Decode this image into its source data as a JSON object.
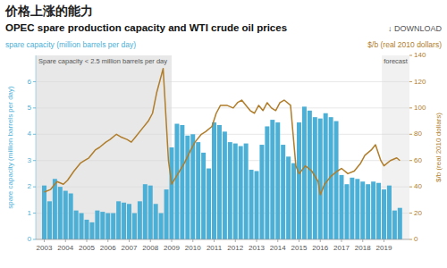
{
  "chart_data": {
    "type": "bar",
    "title": "价格上涨的能力",
    "subtitle": "OPEC spare production capacity and WTI crude oil prices",
    "ylabel": "spare capacity (million barrels per day)",
    "y2label": "$/b (real 2010 dollars)",
    "annotations": [
      "Spare capacity < 2.5 million barrels per day",
      "forecast",
      "↓ DOWNLOAD"
    ],
    "xlim": [
      2002.6,
      2020.2
    ],
    "xticks": [
      2003,
      2004,
      2005,
      2006,
      2007,
      2008,
      2009,
      2010,
      2011,
      2012,
      2013,
      2014,
      2015,
      2016,
      2017,
      2018,
      2019
    ],
    "ylim": [
      0,
      7
    ],
    "yticks": [
      0,
      1,
      2,
      3,
      4,
      5,
      6
    ],
    "y2lim": [
      0,
      140
    ],
    "y2ticks": [
      0,
      20,
      40,
      60,
      80,
      100,
      120,
      140
    ],
    "grid": true,
    "shade_color": "#e8e8e8",
    "shaded": [
      {
        "from": 2002.6,
        "to": 2009.0
      },
      {
        "from": 2018.9,
        "to": 2020.2
      }
    ],
    "series": [
      {
        "type": "bar",
        "color": "#4bafd6",
        "x": [
          2003,
          2003.25,
          2003.5,
          2003.75,
          2004,
          2004.25,
          2004.5,
          2004.75,
          2005,
          2005.25,
          2005.5,
          2005.75,
          2006,
          2006.25,
          2006.5,
          2006.75,
          2007,
          2007.25,
          2007.5,
          2007.75,
          2008,
          2008.25,
          2008.5,
          2008.75,
          2009,
          2009.25,
          2009.5,
          2009.75,
          2010,
          2010.25,
          2010.5,
          2010.75,
          2011,
          2011.25,
          2011.5,
          2011.75,
          2012,
          2012.25,
          2012.5,
          2012.75,
          2013,
          2013.25,
          2013.5,
          2013.75,
          2014,
          2014.25,
          2014.5,
          2014.75,
          2015,
          2015.25,
          2015.5,
          2015.75,
          2016,
          2016.25,
          2016.5,
          2016.75,
          2017,
          2017.25,
          2017.5,
          2017.75,
          2018,
          2018.25,
          2018.5,
          2018.75,
          2019,
          2019.25,
          2019.5,
          2019.75
        ],
        "values": [
          2.05,
          1.45,
          2.3,
          2.0,
          1.85,
          1.75,
          1.1,
          1.0,
          0.75,
          0.65,
          1.1,
          1.05,
          1.0,
          1.0,
          1.45,
          1.4,
          1.35,
          1.0,
          1.45,
          2.1,
          2.05,
          1.35,
          1.0,
          1.9,
          3.5,
          4.4,
          4.35,
          3.95,
          4.0,
          3.7,
          3.3,
          2.7,
          4.45,
          4.35,
          4.1,
          3.7,
          3.65,
          3.55,
          3.65,
          2.65,
          2.6,
          3.6,
          4.3,
          4.55,
          4.45,
          3.6,
          3.15,
          2.9,
          4.45,
          5.05,
          4.9,
          4.65,
          4.6,
          4.8,
          4.65,
          4.5,
          2.45,
          2.1,
          2.35,
          2.3,
          2.2,
          2.1,
          2.2,
          2.15,
          1.9,
          2.05,
          1.1,
          1.2
        ]
      },
      {
        "type": "line",
        "axis": "y2",
        "color": "#b07d2a",
        "x": [
          2003.0,
          2003.3,
          2003.6,
          2003.9,
          2004.1,
          2004.4,
          2004.7,
          2004.9,
          2005.1,
          2005.4,
          2005.6,
          2005.9,
          2006.1,
          2006.4,
          2006.6,
          2006.9,
          2007.1,
          2007.3,
          2007.6,
          2007.9,
          2008.1,
          2008.3,
          2008.6,
          2008.85,
          2009.0,
          2009.3,
          2009.6,
          2009.9,
          2010.1,
          2010.4,
          2010.6,
          2010.9,
          2011.1,
          2011.3,
          2011.6,
          2011.9,
          2012.1,
          2012.3,
          2012.5,
          2012.7,
          2012.9,
          2013.1,
          2013.3,
          2013.5,
          2013.7,
          2013.9,
          2014.1,
          2014.3,
          2014.6,
          2014.85,
          2015.0,
          2015.3,
          2015.6,
          2015.9,
          2016.0,
          2016.2,
          2016.5,
          2016.8,
          2017.0,
          2017.3,
          2017.6,
          2017.9,
          2018.1,
          2018.4,
          2018.6,
          2018.85,
          2019.0,
          2019.3,
          2019.6,
          2019.75
        ],
        "values": [
          36,
          38,
          44,
          42,
          45,
          52,
          58,
          60,
          62,
          68,
          70,
          74,
          76,
          80,
          78,
          76,
          74,
          78,
          84,
          90,
          96,
          112,
          130,
          60,
          42,
          50,
          58,
          68,
          74,
          80,
          82,
          86,
          96,
          102,
          102,
          100,
          104,
          106,
          102,
          98,
          96,
          102,
          98,
          104,
          100,
          98,
          104,
          106,
          102,
          56,
          50,
          56,
          52,
          44,
          34,
          42,
          48,
          52,
          54,
          50,
          52,
          58,
          64,
          68,
          72,
          60,
          56,
          60,
          62,
          60
        ]
      }
    ]
  }
}
